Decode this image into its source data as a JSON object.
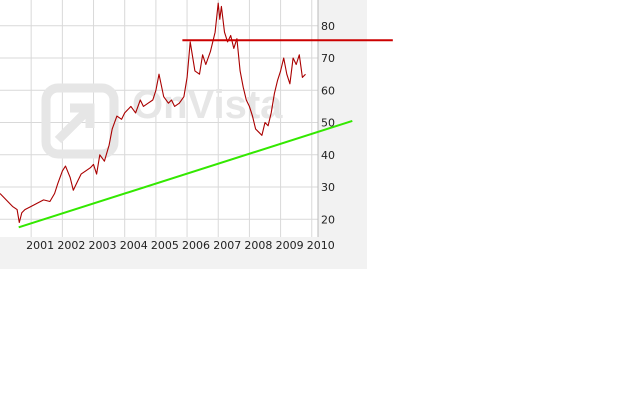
{
  "chart_data": {
    "type": "line",
    "title": "",
    "xlabel": "",
    "ylabel": "",
    "x_ticks": [
      "2001",
      "2002",
      "2003",
      "2004",
      "2005",
      "2006",
      "2007",
      "2008",
      "2009",
      "2010"
    ],
    "y_ticks": [
      20,
      30,
      40,
      50,
      60,
      70,
      80
    ],
    "xlim": [
      2000.0,
      2010.2
    ],
    "ylim": [
      14.5,
      88
    ],
    "grid": true,
    "watermark": "OnVista",
    "series": [
      {
        "color": "#aa0000",
        "x": [
          2000.0,
          2000.2,
          2000.4,
          2000.55,
          2000.62,
          2000.7,
          2000.8,
          2001.0,
          2001.2,
          2001.4,
          2001.6,
          2001.75,
          2001.85,
          2002.0,
          2002.1,
          2002.25,
          2002.35,
          2002.5,
          2002.6,
          2002.75,
          2002.9,
          2003.0,
          2003.1,
          2003.2,
          2003.35,
          2003.5,
          2003.6,
          2003.75,
          2003.9,
          2004.0,
          2004.2,
          2004.35,
          2004.5,
          2004.6,
          2004.75,
          2004.9,
          2005.0,
          2005.1,
          2005.25,
          2005.4,
          2005.5,
          2005.6,
          2005.75,
          2005.9,
          2006.0,
          2006.1,
          2006.25,
          2006.4,
          2006.5,
          2006.6,
          2006.75,
          2006.9,
          2007.0,
          2007.05,
          2007.1,
          2007.2,
          2007.3,
          2007.4,
          2007.5,
          2007.6,
          2007.7,
          2007.8,
          2007.9,
          2008.0,
          2008.1,
          2008.2,
          2008.3,
          2008.4,
          2008.5,
          2008.6,
          2008.7,
          2008.8,
          2008.9,
          2009.0,
          2009.1,
          2009.2,
          2009.3,
          2009.4,
          2009.5,
          2009.6,
          2009.7,
          2009.8
        ],
        "values": [
          28,
          26,
          24,
          23,
          19,
          22,
          23,
          24,
          25,
          26,
          25.5,
          28,
          31,
          35,
          36.5,
          33,
          29,
          32,
          34,
          35,
          36,
          37,
          34,
          40,
          38,
          43,
          48,
          52,
          51,
          53,
          55,
          53,
          57,
          55,
          56,
          57,
          60,
          65,
          58,
          56,
          57,
          55,
          56,
          58,
          64,
          75,
          66,
          65,
          71,
          68,
          72,
          78,
          87,
          82,
          86,
          78,
          75,
          77,
          73,
          76,
          66,
          61,
          57,
          55,
          52,
          48,
          47,
          46,
          50,
          49,
          53,
          59,
          63,
          66,
          70,
          65,
          62,
          70,
          68,
          71,
          64,
          65
        ]
      }
    ],
    "trendlines": [
      {
        "color": "#33e800",
        "x": [
          2000.6,
          2011.3
        ],
        "values": [
          17.5,
          50.5
        ]
      },
      {
        "color": "#cc0000",
        "x": [
          2005.85,
          2012.6
        ],
        "values": [
          75.5,
          75.5
        ]
      }
    ]
  }
}
